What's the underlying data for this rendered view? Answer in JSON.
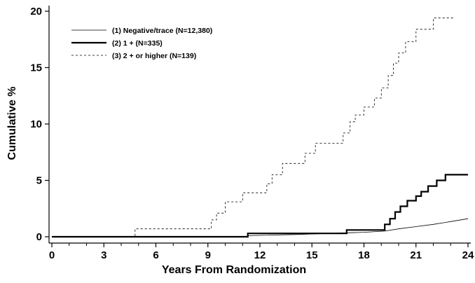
{
  "chart_data": {
    "type": "line",
    "xlabel": "Years From Randomization",
    "ylabel": "Cumulative %",
    "xlim": [
      0,
      24
    ],
    "ylim": [
      0,
      20
    ],
    "xticks": [
      0,
      3,
      6,
      9,
      12,
      15,
      18,
      21,
      24
    ],
    "yticks": [
      0,
      5,
      10,
      15,
      20
    ],
    "grid": false,
    "legend_position": "top-left",
    "series": [
      {
        "name": "(1) Negative/trace (N=12,380)",
        "style": "thin-solid",
        "x": [
          0,
          11.3,
          11.3,
          14,
          16,
          18,
          19.2,
          20,
          21,
          22,
          23,
          24
        ],
        "y": [
          0,
          0,
          0.1,
          0.2,
          0.3,
          0.4,
          0.5,
          0.7,
          0.9,
          1.1,
          1.35,
          1.6
        ]
      },
      {
        "name": "(2) 1 + (N=335)",
        "style": "thick-solid",
        "x": [
          0,
          11.3,
          11.3,
          17,
          17,
          19.2,
          19.2,
          19.5,
          19.5,
          19.8,
          19.8,
          20.1,
          20.1,
          20.5,
          20.5,
          21,
          21,
          21.3,
          21.3,
          21.7,
          21.7,
          22.2,
          22.2,
          22.7,
          22.7,
          24
        ],
        "y": [
          0,
          0,
          0.3,
          0.3,
          0.6,
          0.6,
          1.1,
          1.1,
          1.6,
          1.6,
          2.2,
          2.2,
          2.7,
          2.7,
          3.2,
          3.2,
          3.6,
          3.6,
          4.0,
          4.0,
          4.5,
          4.5,
          5.0,
          5.0,
          5.5,
          5.5
        ]
      },
      {
        "name": "(3) 2 + or higher (N=139)",
        "style": "dashed",
        "x": [
          0,
          4.8,
          4.8,
          9.2,
          9.2,
          9.5,
          9.5,
          10,
          10,
          11,
          11,
          12.4,
          12.4,
          12.7,
          12.7,
          13.3,
          13.3,
          14.6,
          14.6,
          15.2,
          15.2,
          16.8,
          16.8,
          17.2,
          17.2,
          17.5,
          17.5,
          18,
          18,
          18.6,
          18.6,
          19,
          19,
          19.4,
          19.4,
          19.7,
          19.7,
          20,
          20,
          20.4,
          20.4,
          21,
          21,
          22,
          22,
          22.8,
          22.8,
          23.2
        ],
        "y": [
          0,
          0,
          0.7,
          0.7,
          1.5,
          1.5,
          2.1,
          2.1,
          3.1,
          3.1,
          3.9,
          3.9,
          4.7,
          4.7,
          5.5,
          5.5,
          6.5,
          6.5,
          7.4,
          7.4,
          8.3,
          8.3,
          9.2,
          9.2,
          10.2,
          10.2,
          10.8,
          10.8,
          11.5,
          11.5,
          12.3,
          12.3,
          13.2,
          13.2,
          14.3,
          14.3,
          15.4,
          15.4,
          16.3,
          16.3,
          17.3,
          17.3,
          18.4,
          18.4,
          19.4,
          19.4,
          19.4,
          19.4
        ]
      }
    ]
  }
}
